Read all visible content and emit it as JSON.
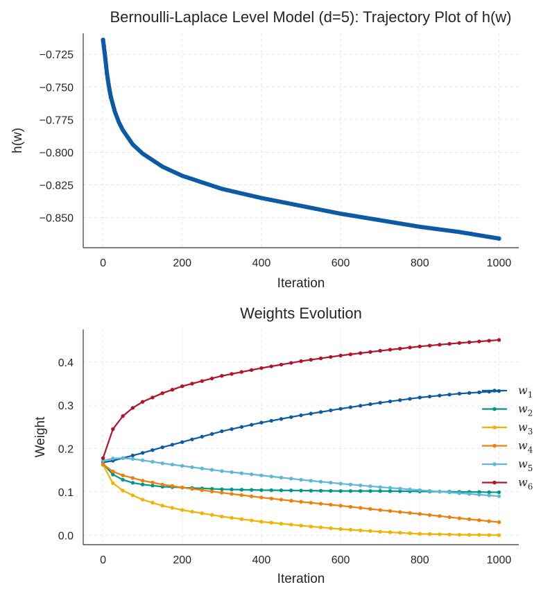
{
  "chart_data": [
    {
      "type": "line",
      "title": "Bernoulli-Laplace Level Model (d=5): Trajectory Plot of h(w)",
      "xlabel": "Iteration",
      "ylabel": "h(w)",
      "xlim": [
        -50,
        1050
      ],
      "ylim": [
        -0.873,
        -0.709
      ],
      "xticks": [
        0,
        200,
        400,
        600,
        800,
        1000
      ],
      "xtick_labels": [
        "0",
        "200",
        "400",
        "600",
        "800",
        "1000"
      ],
      "yticks": [
        -0.725,
        -0.75,
        -0.775,
        -0.8,
        -0.825,
        -0.85
      ],
      "ytick_labels": [
        "−0.725",
        "−0.750",
        "−0.775",
        "−0.800",
        "−0.825",
        "−0.850"
      ],
      "grid": true,
      "series": [
        {
          "name": "h(w)",
          "color": "#0b5aa6",
          "x": [
            0,
            5,
            10,
            15,
            20,
            30,
            40,
            50,
            75,
            100,
            150,
            200,
            300,
            400,
            500,
            600,
            700,
            800,
            900,
            1000
          ],
          "values": [
            -0.714,
            -0.726,
            -0.74,
            -0.75,
            -0.758,
            -0.769,
            -0.777,
            -0.783,
            -0.794,
            -0.801,
            -0.811,
            -0.818,
            -0.828,
            -0.835,
            -0.841,
            -0.847,
            -0.852,
            -0.857,
            -0.861,
            -0.866
          ]
        }
      ]
    },
    {
      "type": "line",
      "title": "Weights Evolution",
      "xlabel": "Iteration",
      "ylabel": "Weight",
      "xlim": [
        -50,
        1050
      ],
      "ylim": [
        -0.022,
        0.475
      ],
      "xticks": [
        0,
        200,
        400,
        600,
        800,
        1000
      ],
      "xtick_labels": [
        "0",
        "200",
        "400",
        "600",
        "800",
        "1000"
      ],
      "yticks": [
        0.0,
        0.1,
        0.2,
        0.3,
        0.4
      ],
      "ytick_labels": [
        "0.0",
        "0.1",
        "0.2",
        "0.3",
        "0.4"
      ],
      "grid": true,
      "legend": "center-right",
      "x": [
        0,
        25,
        50,
        75,
        100,
        150,
        200,
        300,
        400,
        500,
        600,
        700,
        800,
        900,
        1000
      ],
      "series": [
        {
          "name": "w1",
          "symbol": "w",
          "sub": "1",
          "color": "#0b5aa6",
          "values": [
            0.168,
            0.172,
            0.178,
            0.184,
            0.19,
            0.203,
            0.215,
            0.24,
            0.26,
            0.277,
            0.292,
            0.306,
            0.318,
            0.327,
            0.333
          ]
        },
        {
          "name": "w2",
          "symbol": "w",
          "sub": "2",
          "color": "#009688",
          "values": [
            0.165,
            0.14,
            0.128,
            0.121,
            0.117,
            0.112,
            0.11,
            0.106,
            0.104,
            0.103,
            0.102,
            0.102,
            0.101,
            0.1,
            0.099
          ]
        },
        {
          "name": "w3",
          "symbol": "w",
          "sub": "3",
          "color": "#f2b200",
          "values": [
            0.162,
            0.12,
            0.103,
            0.092,
            0.082,
            0.068,
            0.058,
            0.043,
            0.031,
            0.022,
            0.014,
            0.008,
            0.003,
            0.001,
            0.0
          ]
        },
        {
          "name": "w4",
          "symbol": "w",
          "sub": "4",
          "color": "#f07f0a",
          "values": [
            0.164,
            0.147,
            0.138,
            0.132,
            0.126,
            0.117,
            0.11,
            0.098,
            0.087,
            0.077,
            0.068,
            0.058,
            0.049,
            0.039,
            0.03
          ]
        },
        {
          "name": "w5",
          "symbol": "w",
          "sub": "5",
          "color": "#5cb8d6",
          "values": [
            0.172,
            0.177,
            0.178,
            0.176,
            0.173,
            0.166,
            0.16,
            0.148,
            0.138,
            0.128,
            0.119,
            0.111,
            0.104,
            0.097,
            0.09
          ]
        },
        {
          "name": "w6",
          "symbol": "w",
          "sub": "6",
          "color": "#b3132a",
          "values": [
            0.178,
            0.245,
            0.275,
            0.294,
            0.308,
            0.328,
            0.344,
            0.368,
            0.386,
            0.402,
            0.415,
            0.426,
            0.436,
            0.444,
            0.451
          ]
        }
      ]
    }
  ]
}
